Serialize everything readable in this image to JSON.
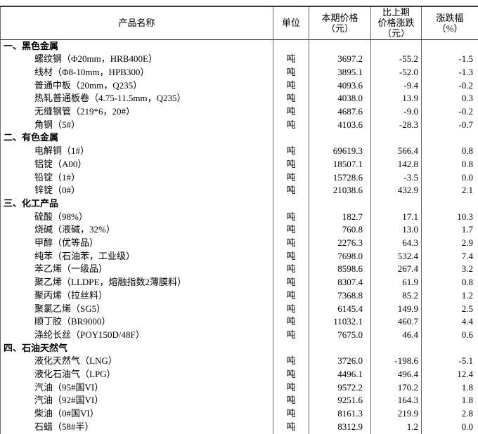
{
  "table": {
    "header": {
      "product": "产品名称",
      "unit": "单位",
      "current_price": "本期价格\n（元）",
      "change": "比上期\n价格涨跌\n（元）",
      "pct": "涨跌幅\n（%）"
    },
    "rows": [
      {
        "type": "section",
        "name": "一、黑色金属",
        "unit": "",
        "price": "",
        "change": "",
        "pct": ""
      },
      {
        "type": "item",
        "name": "螺纹钢（Φ20mm，HRB400E）",
        "unit": "吨",
        "price": "3697.2",
        "change": "-55.2",
        "pct": "-1.5"
      },
      {
        "type": "item",
        "name": "线材（Φ8-10mm，HPB300）",
        "unit": "吨",
        "price": "3895.1",
        "change": "-52.0",
        "pct": "-1.3"
      },
      {
        "type": "item",
        "name": "普通中板（20mm，Q235）",
        "unit": "吨",
        "price": "4093.6",
        "change": "-9.4",
        "pct": "-0.2"
      },
      {
        "type": "item",
        "name": "热轧普通板卷（4.75-11.5mm，Q235）",
        "unit": "吨",
        "price": "4038.0",
        "change": "13.9",
        "pct": "0.3"
      },
      {
        "type": "item",
        "name": "无缝钢管（219*6，20#）",
        "unit": "吨",
        "price": "4687.6",
        "change": "-9.0",
        "pct": "-0.2"
      },
      {
        "type": "item",
        "name": "角钢（5#）",
        "unit": "吨",
        "price": "4103.6",
        "change": "-28.3",
        "pct": "-0.7"
      },
      {
        "type": "section",
        "name": "二、有色金属",
        "unit": "",
        "price": "",
        "change": "",
        "pct": ""
      },
      {
        "type": "item",
        "name": "电解铜（1#）",
        "unit": "吨",
        "price": "69619.3",
        "change": "566.4",
        "pct": "0.8"
      },
      {
        "type": "item",
        "name": "铝锭（A00）",
        "unit": "吨",
        "price": "18507.1",
        "change": "142.8",
        "pct": "0.8"
      },
      {
        "type": "item",
        "name": "铅锭（1#）",
        "unit": "吨",
        "price": "15728.6",
        "change": "-3.5",
        "pct": "0.0"
      },
      {
        "type": "item",
        "name": "锌锭（0#）",
        "unit": "吨",
        "price": "21038.6",
        "change": "432.9",
        "pct": "2.1"
      },
      {
        "type": "section",
        "name": "三、化工产品",
        "unit": "",
        "price": "",
        "change": "",
        "pct": ""
      },
      {
        "type": "item",
        "name": "硫酸（98%）",
        "unit": "吨",
        "price": "182.7",
        "change": "17.1",
        "pct": "10.3"
      },
      {
        "type": "item",
        "name": "烧碱（液碱，32%）",
        "unit": "吨",
        "price": "760.8",
        "change": "13.0",
        "pct": "1.7"
      },
      {
        "type": "item",
        "name": "甲醇（优等品）",
        "unit": "吨",
        "price": "2276.3",
        "change": "64.3",
        "pct": "2.9"
      },
      {
        "type": "item",
        "name": "纯苯（石油苯，工业级）",
        "unit": "吨",
        "price": "7698.0",
        "change": "532.4",
        "pct": "7.4"
      },
      {
        "type": "item",
        "name": "苯乙烯（一级品）",
        "unit": "吨",
        "price": "8598.6",
        "change": "267.4",
        "pct": "3.2"
      },
      {
        "type": "item",
        "name": "聚乙烯（LLDPE，熔融指数2薄膜料）",
        "unit": "吨",
        "price": "8307.4",
        "change": "61.9",
        "pct": "0.8"
      },
      {
        "type": "item",
        "name": "聚丙烯（拉丝料）",
        "unit": "吨",
        "price": "7368.8",
        "change": "85.2",
        "pct": "1.2"
      },
      {
        "type": "item",
        "name": "聚氯乙烯（SG5）",
        "unit": "吨",
        "price": "6145.4",
        "change": "149.9",
        "pct": "2.5"
      },
      {
        "type": "item",
        "name": "顺丁胶（BR9000）",
        "unit": "吨",
        "price": "11032.1",
        "change": "460.7",
        "pct": "4.4"
      },
      {
        "type": "item",
        "name": "涤纶长丝（POY150D/48F）",
        "unit": "吨",
        "price": "7675.0",
        "change": "46.4",
        "pct": "0.6"
      },
      {
        "type": "section",
        "name": "四、石油天然气",
        "unit": "",
        "price": "",
        "change": "",
        "pct": ""
      },
      {
        "type": "item",
        "name": "液化天然气（LNG）",
        "unit": "吨",
        "price": "3726.0",
        "change": "-198.6",
        "pct": "-5.1"
      },
      {
        "type": "item",
        "name": "液化石油气（LPG）",
        "unit": "吨",
        "price": "4496.1",
        "change": "496.4",
        "pct": "12.4"
      },
      {
        "type": "item",
        "name": "汽油（95#国VI）",
        "unit": "吨",
        "price": "9572.2",
        "change": "170.2",
        "pct": "1.8"
      },
      {
        "type": "item",
        "name": "汽油（92#国VI）",
        "unit": "吨",
        "price": "9251.6",
        "change": "164.3",
        "pct": "1.8"
      },
      {
        "type": "item",
        "name": "柴油（0#国VI）",
        "unit": "吨",
        "price": "8161.3",
        "change": "219.9",
        "pct": "2.8"
      },
      {
        "type": "item",
        "name": "石蜡（58#半）",
        "unit": "吨",
        "price": "8312.9",
        "change": "1.2",
        "pct": "0.0"
      }
    ]
  }
}
